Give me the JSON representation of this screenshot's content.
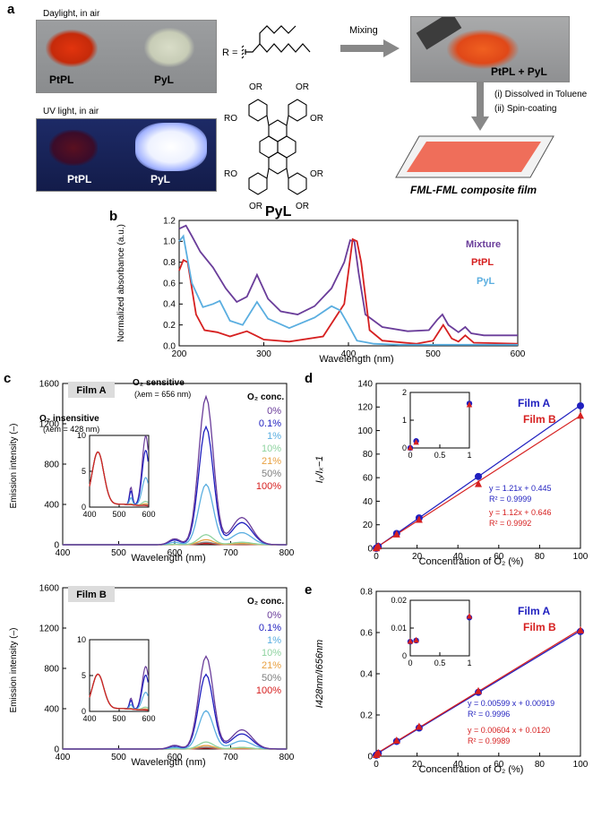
{
  "panel_a": {
    "letter": "a",
    "photo_daylight": {
      "caption": "Daylight, in air",
      "label_left": "PtPL",
      "label_right": "PyL"
    },
    "photo_uv": {
      "caption": "UV light, in air",
      "label_left": "PtPL",
      "label_right": "PyL"
    },
    "r_label": "R =",
    "molecule_name": "PyL",
    "or_label": "OR",
    "ro_label": "RO",
    "mixing_label": "Mixing",
    "photo_mix_label": "PtPL + PyL",
    "step1": "(i) Dissolved in Toluene",
    "step2": "(ii) Spin-coating",
    "film_label": "FML-FML composite film"
  },
  "panel_b": {
    "letter": "b",
    "xlabel": "Wavelength (nm)",
    "ylabel": "Normalized absorbance (a.u.)",
    "legend": [
      {
        "name": "Mixture",
        "color": "#6a3d9a"
      },
      {
        "name": "PtPL",
        "color": "#d62020"
      },
      {
        "name": "PyL",
        "color": "#5aaee0"
      }
    ]
  },
  "panel_c": {
    "letter": "c",
    "filmA_label": "Film A",
    "filmB_label": "Film B",
    "o2_sensitive": "O₂ sensitive",
    "lambda_sens": "(λem = 656 nm)",
    "o2_insensitive": "O₂ insensitive",
    "lambda_insens": "(λem = 428 nm)",
    "legend_title": "O₂ conc.",
    "legend": [
      {
        "name": "0%",
        "color": "#6a3d9a"
      },
      {
        "name": "0.1%",
        "color": "#1f1fbf"
      },
      {
        "name": "1%",
        "color": "#5aaee0"
      },
      {
        "name": "10%",
        "color": "#8fd3a0"
      },
      {
        "name": "21%",
        "color": "#e8a040"
      },
      {
        "name": "50%",
        "color": "#7f7f7f"
      },
      {
        "name": "100%",
        "color": "#d62020"
      }
    ],
    "xlabel": "Wavelength (nm)",
    "ylabel": "Emission intensity (–)"
  },
  "panel_d": {
    "letter": "d",
    "xlabel": "Concentration of O₂ (%)",
    "ylabel": "I₀/Iₓ−1",
    "filmA": "Film A",
    "filmB": "Film B",
    "eqA": "y = 1.21x + 0.445",
    "r2A": "R² = 0.9999",
    "eqB": "y = 1.12x + 0.646",
    "r2B": "R² = 0.9992",
    "colorA": "#1f1fbf",
    "colorB": "#d62020"
  },
  "panel_e": {
    "letter": "e",
    "xlabel": "Concentration of O₂ (%)",
    "ylabel": "I428nm/I656nm",
    "filmA": "Film A",
    "filmB": "Film B",
    "eqA": "y = 0.00599 x + 0.00919",
    "r2A": "R² = 0.9996",
    "eqB": "y = 0.00604 x + 0.0120",
    "r2B": "R² = 0.9989"
  },
  "chart_data": [
    {
      "id": "b",
      "type": "line",
      "xlabel": "Wavelength (nm)",
      "ylabel": "Normalized absorbance (a.u.)",
      "xlim": [
        200,
        600
      ],
      "ylim": [
        0,
        1.2
      ],
      "xticks": [
        200,
        300,
        400,
        500,
        600
      ],
      "yticks": [
        0,
        0.2,
        0.4,
        0.6,
        0.8,
        1.0,
        1.2
      ],
      "series": [
        {
          "name": "Mixture",
          "color": "#6a3d9a",
          "x": [
            200,
            208,
            215,
            225,
            240,
            255,
            268,
            280,
            292,
            305,
            320,
            340,
            360,
            380,
            395,
            402,
            407,
            412,
            420,
            440,
            470,
            495,
            505,
            511,
            518,
            530,
            538,
            545,
            560,
            600
          ],
          "y": [
            1.12,
            1.15,
            1.05,
            0.9,
            0.75,
            0.55,
            0.42,
            0.47,
            0.68,
            0.45,
            0.33,
            0.3,
            0.38,
            0.55,
            0.8,
            1.01,
            1.0,
            0.7,
            0.3,
            0.18,
            0.14,
            0.15,
            0.25,
            0.3,
            0.2,
            0.13,
            0.18,
            0.12,
            0.1,
            0.1
          ]
        },
        {
          "name": "PtPL",
          "color": "#d62020",
          "x": [
            200,
            205,
            210,
            220,
            230,
            245,
            260,
            280,
            290,
            300,
            330,
            370,
            395,
            405,
            410,
            415,
            425,
            440,
            480,
            500,
            512,
            522,
            530,
            538,
            548,
            600
          ],
          "y": [
            0.72,
            0.82,
            0.8,
            0.3,
            0.15,
            0.13,
            0.09,
            0.14,
            0.1,
            0.06,
            0.04,
            0.09,
            0.4,
            1.02,
            1.0,
            0.8,
            0.15,
            0.05,
            0.02,
            0.05,
            0.2,
            0.07,
            0.04,
            0.1,
            0.03,
            0.02
          ]
        },
        {
          "name": "PyL",
          "color": "#5aaee0",
          "x": [
            200,
            205,
            215,
            228,
            240,
            248,
            260,
            275,
            292,
            305,
            330,
            360,
            380,
            390,
            400,
            410,
            430,
            460,
            500,
            600
          ],
          "y": [
            1.0,
            1.05,
            0.6,
            0.37,
            0.4,
            0.43,
            0.24,
            0.2,
            0.42,
            0.26,
            0.17,
            0.27,
            0.38,
            0.34,
            0.2,
            0.05,
            0.02,
            0.01,
            0.01,
            0.01
          ]
        }
      ]
    },
    {
      "id": "c_filmA",
      "type": "line",
      "title": "Film A",
      "xlabel": "Wavelength (nm)",
      "ylabel": "Emission intensity (–)",
      "xlim": [
        400,
        800
      ],
      "ylim": [
        0,
        1600
      ],
      "xticks": [
        400,
        500,
        600,
        700,
        800
      ],
      "yticks": [
        0,
        400,
        800,
        1200,
        1600
      ],
      "peak_wavelengths": [
        656,
        720
      ],
      "peaks": [
        {
          "name": "0%",
          "color": "#6a3d9a",
          "p656": 1470,
          "p720": 270
        },
        {
          "name": "0.1%",
          "color": "#1f1fbf",
          "p656": 1170,
          "p720": 220
        },
        {
          "name": "1%",
          "color": "#5aaee0",
          "p656": 600,
          "p720": 120
        },
        {
          "name": "10%",
          "color": "#8fd3a0",
          "p656": 100,
          "p720": 25
        },
        {
          "name": "21%",
          "color": "#e8a040",
          "p656": 50,
          "p720": 12
        },
        {
          "name": "50%",
          "color": "#7f7f7f",
          "p656": 25,
          "p720": 6
        },
        {
          "name": "100%",
          "color": "#d62020",
          "p656": 12,
          "p720": 3
        }
      ],
      "inset": {
        "xlim": [
          400,
          600
        ],
        "ylim": [
          0,
          10
        ],
        "yticks": [
          0,
          5,
          10
        ],
        "xticks": [
          400,
          500,
          600
        ],
        "common_peak": {
          "x": 428,
          "y": 7.5
        }
      }
    },
    {
      "id": "c_filmB",
      "type": "line",
      "title": "Film B",
      "xlabel": "Wavelength (nm)",
      "ylabel": "Emission intensity (–)",
      "xlim": [
        400,
        800
      ],
      "ylim": [
        0,
        1600
      ],
      "xticks": [
        400,
        500,
        600,
        700,
        800
      ],
      "yticks": [
        0,
        400,
        800,
        1200,
        1600
      ],
      "peak_wavelengths": [
        656,
        720
      ],
      "peaks": [
        {
          "name": "0%",
          "color": "#6a3d9a",
          "p656": 920,
          "p720": 190
        },
        {
          "name": "0.1%",
          "color": "#1f1fbf",
          "p656": 740,
          "p720": 150
        },
        {
          "name": "1%",
          "color": "#5aaee0",
          "p656": 380,
          "p720": 80
        },
        {
          "name": "10%",
          "color": "#8fd3a0",
          "p656": 70,
          "p720": 16
        },
        {
          "name": "21%",
          "color": "#e8a040",
          "p656": 35,
          "p720": 8
        },
        {
          "name": "50%",
          "color": "#7f7f7f",
          "p656": 18,
          "p720": 4
        },
        {
          "name": "100%",
          "color": "#d62020",
          "p656": 9,
          "p720": 2
        }
      ],
      "inset": {
        "xlim": [
          400,
          600
        ],
        "ylim": [
          0,
          10
        ],
        "yticks": [
          0,
          5,
          10
        ],
        "xticks": [
          400,
          500,
          600
        ],
        "common_peak": {
          "x": 428,
          "y": 5
        }
      }
    },
    {
      "id": "d",
      "type": "scatter",
      "xlabel": "Concentration of O₂ (%)",
      "ylabel": "I₀/Iₓ−1",
      "xlim": [
        0,
        100
      ],
      "ylim": [
        0,
        140
      ],
      "xticks": [
        0,
        20,
        40,
        60,
        80,
        100
      ],
      "yticks": [
        0,
        20,
        40,
        60,
        80,
        100,
        120,
        140
      ],
      "x": [
        0,
        0.1,
        1,
        10,
        21,
        50,
        100
      ],
      "series": [
        {
          "name": "Film A",
          "color": "#1f1fbf",
          "marker": "circle",
          "values": [
            0,
            0.25,
            1.6,
            12.6,
            25.8,
            61,
            121
          ],
          "fit": {
            "slope": 1.21,
            "intercept": 0.445
          }
        },
        {
          "name": "Film B",
          "color": "#d62020",
          "marker": "triangle",
          "values": [
            0,
            0.2,
            1.55,
            11.7,
            24.1,
            54.5,
            112.5
          ],
          "fit": {
            "slope": 1.12,
            "intercept": 0.646
          }
        }
      ],
      "inset": {
        "xlim": [
          0,
          1
        ],
        "ylim": [
          0,
          2
        ],
        "xticks": [
          0,
          0.5,
          1
        ],
        "yticks": [
          0,
          1,
          2
        ]
      }
    },
    {
      "id": "e",
      "type": "scatter",
      "xlabel": "Concentration of O₂ (%)",
      "ylabel": "I428nm/I656nm",
      "xlim": [
        0,
        100
      ],
      "ylim": [
        0,
        0.8
      ],
      "xticks": [
        0,
        20,
        40,
        60,
        80,
        100
      ],
      "yticks": [
        0,
        0.2,
        0.4,
        0.6,
        0.8
      ],
      "x": [
        0,
        0.1,
        1,
        10,
        21,
        50,
        100
      ],
      "series": [
        {
          "name": "Film A",
          "color": "#1f1fbf",
          "marker": "circle",
          "values": [
            0.0051,
            0.0055,
            0.0138,
            0.072,
            0.137,
            0.31,
            0.605
          ],
          "fit": {
            "slope": 0.00599,
            "intercept": 0.00919
          }
        },
        {
          "name": "Film B",
          "color": "#d62020",
          "marker": "triangle",
          "values": [
            0.0052,
            0.0056,
            0.0142,
            0.075,
            0.142,
            0.315,
            0.61
          ],
          "fit": {
            "slope": 0.00604,
            "intercept": 0.012
          }
        }
      ],
      "inset": {
        "xlim": [
          0,
          1
        ],
        "ylim": [
          0,
          0.02
        ],
        "xticks": [
          0,
          0.5,
          1
        ],
        "yticks": [
          0,
          0.01,
          0.02
        ]
      }
    }
  ]
}
